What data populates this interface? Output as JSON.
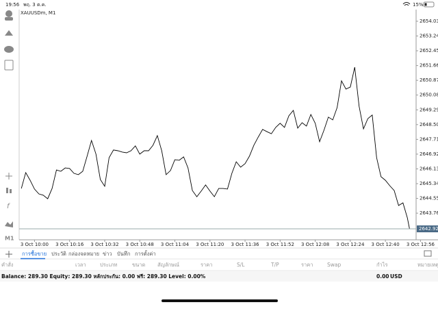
{
  "status_bar": {
    "time": "19:56",
    "date": "พฤ. 3 ต.ค.",
    "battery": "15%"
  },
  "toolbar": {
    "timeframe": "M1"
  },
  "chart_data": {
    "type": "line",
    "title": "XAUUSDm, M1",
    "color": "#000000",
    "x": [
      "3 Oct 09:54",
      "3 Oct 09:56",
      "3 Oct 09:58",
      "3 Oct 10:00",
      "3 Oct 10:02",
      "3 Oct 10:04",
      "3 Oct 10:06",
      "3 Oct 10:08",
      "3 Oct 10:10",
      "3 Oct 10:12",
      "3 Oct 10:14",
      "3 Oct 10:16",
      "3 Oct 10:18",
      "3 Oct 10:20",
      "3 Oct 10:22",
      "3 Oct 10:24",
      "3 Oct 10:26",
      "3 Oct 10:28",
      "3 Oct 10:30",
      "3 Oct 10:32",
      "3 Oct 10:34",
      "3 Oct 10:36",
      "3 Oct 10:38",
      "3 Oct 10:40",
      "3 Oct 10:42",
      "3 Oct 10:44",
      "3 Oct 10:46",
      "3 Oct 10:48",
      "3 Oct 10:50",
      "3 Oct 10:52",
      "3 Oct 10:54",
      "3 Oct 10:56",
      "3 Oct 10:58",
      "3 Oct 11:00",
      "3 Oct 11:02",
      "3 Oct 11:04",
      "3 Oct 11:06",
      "3 Oct 11:08",
      "3 Oct 11:10",
      "3 Oct 11:12",
      "3 Oct 11:14",
      "3 Oct 11:16",
      "3 Oct 11:18",
      "3 Oct 11:20",
      "3 Oct 11:22",
      "3 Oct 11:24",
      "3 Oct 11:26",
      "3 Oct 11:28",
      "3 Oct 11:30",
      "3 Oct 11:32",
      "3 Oct 11:34",
      "3 Oct 11:36",
      "3 Oct 11:38",
      "3 Oct 11:40",
      "3 Oct 11:42",
      "3 Oct 11:44",
      "3 Oct 11:46",
      "3 Oct 11:48",
      "3 Oct 11:50",
      "3 Oct 11:52",
      "3 Oct 11:54",
      "3 Oct 11:56",
      "3 Oct 11:58",
      "3 Oct 12:00",
      "3 Oct 12:02",
      "3 Oct 12:04",
      "3 Oct 12:06",
      "3 Oct 12:08",
      "3 Oct 12:10",
      "3 Oct 12:12",
      "3 Oct 12:14",
      "3 Oct 12:16",
      "3 Oct 12:18",
      "3 Oct 12:20",
      "3 Oct 12:22",
      "3 Oct 12:24",
      "3 Oct 12:26",
      "3 Oct 12:28",
      "3 Oct 12:30",
      "3 Oct 12:32",
      "3 Oct 12:34",
      "3 Oct 12:36",
      "3 Oct 12:38",
      "3 Oct 12:40",
      "3 Oct 12:42",
      "3 Oct 12:44",
      "3 Oct 12:46",
      "3 Oct 12:48",
      "3 Oct 12:50",
      "3 Oct 12:51"
    ],
    "values": [
      2645.08,
      2645.93,
      2645.52,
      2645.05,
      2644.79,
      2644.72,
      2644.53,
      2645.08,
      2646.07,
      2646.0,
      2646.18,
      2646.15,
      2645.89,
      2645.82,
      2646.0,
      2646.81,
      2647.65,
      2646.92,
      2645.56,
      2645.2,
      2646.73,
      2647.14,
      2647.1,
      2647.03,
      2646.99,
      2647.1,
      2647.36,
      2646.92,
      2647.1,
      2647.1,
      2647.39,
      2647.91,
      2647.1,
      2645.82,
      2646.04,
      2646.62,
      2646.59,
      2646.77,
      2646.18,
      2644.97,
      2644.64,
      2644.94,
      2645.27,
      2644.94,
      2644.64,
      2645.08,
      2645.08,
      2645.05,
      2645.89,
      2646.51,
      2646.22,
      2646.41,
      2646.81,
      2647.39,
      2647.83,
      2648.24,
      2648.12,
      2648.01,
      2648.35,
      2648.57,
      2648.35,
      2648.97,
      2649.26,
      2648.31,
      2648.6,
      2648.42,
      2649.04,
      2648.57,
      2647.58,
      2648.2,
      2648.9,
      2648.75,
      2649.41,
      2650.84,
      2650.4,
      2650.51,
      2651.57,
      2649.48,
      2648.27,
      2648.82,
      2649.01,
      2646.73,
      2645.71,
      2645.52,
      2645.23,
      2644.97,
      2644.17,
      2644.31,
      2643.51,
      2642.92
    ],
    "xlim": [
      "3 Oct 09:53",
      "3 Oct 12:54"
    ],
    "xticks": [
      "3 Oct 10:00",
      "3 Oct 10:16",
      "3 Oct 10:32",
      "3 Oct 10:48",
      "3 Oct 11:04",
      "3 Oct 11:20",
      "3 Oct 11:36",
      "3 Oct 11:52",
      "3 Oct 12:08",
      "3 Oct 12:24",
      "3 Oct 12:40",
      "3 Oct 12:56"
    ],
    "ylim": [
      2642.335,
      2654.653
    ],
    "yticks": [
      {
        "value": 2654.03,
        "label": "2654.030"
      },
      {
        "value": 2653.24,
        "label": "2653.240"
      },
      {
        "value": 2652.45,
        "label": "2652.450"
      },
      {
        "value": 2651.66,
        "label": "2651.660"
      },
      {
        "value": 2650.87,
        "label": "2650.870"
      },
      {
        "value": 2650.08,
        "label": "2650.080"
      },
      {
        "value": 2649.29,
        "label": "2649.290"
      },
      {
        "value": 2648.5,
        "label": "2648.500"
      },
      {
        "value": 2647.71,
        "label": "2647.710"
      },
      {
        "value": 2646.92,
        "label": "2646.920"
      },
      {
        "value": 2646.13,
        "label": "2646.130"
      },
      {
        "value": 2645.34,
        "label": "2645.340"
      },
      {
        "value": 2644.55,
        "label": "2644.550"
      },
      {
        "value": 2643.76,
        "label": "2643.760"
      }
    ],
    "price_line": {
      "value": 2642.921,
      "label": "2642.921"
    },
    "grid": false
  },
  "tabs": [
    "การซื้อขาย",
    "ประวัติ",
    "กล่องจดหมาย",
    "ข่าว",
    "บันทึก",
    "การตั้งค่า"
  ],
  "table": {
    "headers": [
      "คำสั่ง",
      "เวลา",
      "ประเภท",
      "ขนาด",
      "สัญลักษณ์",
      "ราคา",
      "S/L",
      "T/P",
      "ราคา",
      "Swap",
      "กำไร",
      "หมายเหตุ"
    ]
  },
  "account": {
    "summary": "Balance: 289.30 Equity: 289.30 หลักประกัน: 0.00 ฟรี: 289.30 Level: 0.00%",
    "profit": "0.00",
    "currency": "USD"
  }
}
